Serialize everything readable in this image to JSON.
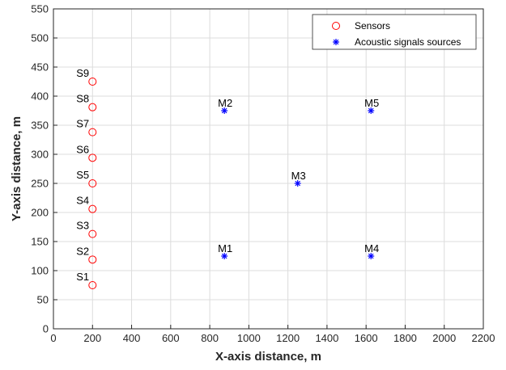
{
  "chart_data": {
    "type": "scatter",
    "xlabel": "X-axis distance, m",
    "ylabel": "Y-axis distance, m",
    "xlim": [
      0,
      2200
    ],
    "ylim": [
      0,
      550
    ],
    "xticks": [
      0,
      200,
      400,
      600,
      800,
      1000,
      1200,
      1400,
      1600,
      1800,
      2000,
      2200
    ],
    "yticks": [
      0,
      50,
      100,
      150,
      200,
      250,
      300,
      350,
      400,
      450,
      500,
      550
    ],
    "grid": true,
    "legend_position": "top-right",
    "series": [
      {
        "name": "Sensors",
        "marker": "circle",
        "color": "#ff0000",
        "points": [
          {
            "label": "S1",
            "x": 200,
            "y": 75
          },
          {
            "label": "S2",
            "x": 200,
            "y": 119
          },
          {
            "label": "S3",
            "x": 200,
            "y": 163
          },
          {
            "label": "S4",
            "x": 200,
            "y": 206
          },
          {
            "label": "S5",
            "x": 200,
            "y": 250
          },
          {
            "label": "S6",
            "x": 200,
            "y": 294
          },
          {
            "label": "S7",
            "x": 200,
            "y": 338
          },
          {
            "label": "S8",
            "x": 200,
            "y": 381
          },
          {
            "label": "S9",
            "x": 200,
            "y": 425
          }
        ]
      },
      {
        "name": "Acoustic signals sources",
        "marker": "asterisk",
        "color": "#0000ff",
        "points": [
          {
            "label": "M1",
            "x": 875,
            "y": 125
          },
          {
            "label": "M2",
            "x": 875,
            "y": 375
          },
          {
            "label": "M3",
            "x": 1250,
            "y": 250
          },
          {
            "label": "M4",
            "x": 1625,
            "y": 125
          },
          {
            "label": "M5",
            "x": 1625,
            "y": 375
          }
        ]
      }
    ]
  }
}
